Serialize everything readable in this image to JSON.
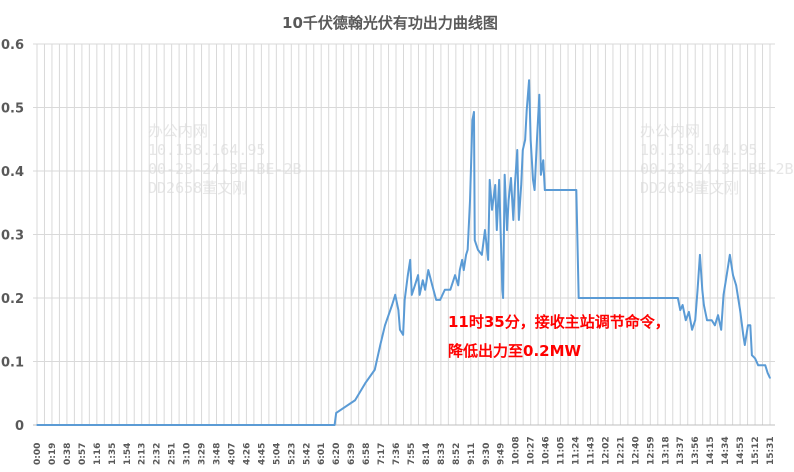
{
  "chart_data": {
    "type": "line",
    "title": "10千伏德翰光伏有功出力曲线图",
    "xlabel": "",
    "ylabel": "",
    "ylim": [
      0,
      0.6
    ],
    "yticks": [
      "0",
      "0.1",
      "0.2",
      "0.3",
      "0.4",
      "0.5",
      "0.6"
    ],
    "xticks": [
      "0:00",
      "0:19",
      "0:38",
      "0:57",
      "1:16",
      "1:35",
      "1:54",
      "2:13",
      "2:32",
      "2:51",
      "3:10",
      "3:29",
      "3:48",
      "4:07",
      "4:26",
      "4:45",
      "5:04",
      "5:23",
      "5:42",
      "6:01",
      "6:20",
      "6:39",
      "6:58",
      "7:17",
      "7:36",
      "7:55",
      "8:14",
      "8:33",
      "8:52",
      "9:11",
      "9:30",
      "9:49",
      "10:08",
      "10:27",
      "10:46",
      "11:05",
      "11:24",
      "11:43",
      "12:02",
      "12:21",
      "12:40",
      "12:59",
      "13:18",
      "13:37",
      "13:56",
      "14:15",
      "14:34",
      "14:53",
      "15:12",
      "15:31"
    ],
    "grid": "horizontal and vertical",
    "line_color": "#5b9bd5",
    "series": [
      {
        "points": [
          [
            "0:00",
            0
          ],
          [
            "6:18",
            0
          ],
          [
            "6:20",
            0.019
          ],
          [
            "6:44",
            0.039
          ],
          [
            "6:57",
            0.066
          ],
          [
            "7:09",
            0.087
          ],
          [
            "7:16",
            0.126
          ],
          [
            "7:22",
            0.157
          ],
          [
            "7:31",
            0.189
          ],
          [
            "7:35",
            0.205
          ],
          [
            "7:39",
            0.181
          ],
          [
            "7:41",
            0.15
          ],
          [
            "7:45",
            0.142
          ],
          [
            "7:47",
            0.197
          ],
          [
            "7:51",
            0.236
          ],
          [
            "7:54",
            0.26
          ],
          [
            "7:56",
            0.205
          ],
          [
            "8:00",
            0.22
          ],
          [
            "8:04",
            0.236
          ],
          [
            "8:06",
            0.205
          ],
          [
            "8:10",
            0.228
          ],
          [
            "8:13",
            0.213
          ],
          [
            "8:17",
            0.244
          ],
          [
            "8:22",
            0.22
          ],
          [
            "8:27",
            0.197
          ],
          [
            "8:32",
            0.197
          ],
          [
            "8:38",
            0.213
          ],
          [
            "8:45",
            0.213
          ],
          [
            "8:51",
            0.236
          ],
          [
            "8:55",
            0.22
          ],
          [
            "8:57",
            0.244
          ],
          [
            "9:00",
            0.26
          ],
          [
            "9:02",
            0.244
          ],
          [
            "9:05",
            0.268
          ],
          [
            "9:07",
            0.276
          ],
          [
            "9:10",
            0.354
          ],
          [
            "9:13",
            0.48
          ],
          [
            "9:15",
            0.493
          ],
          [
            "9:16",
            0.291
          ],
          [
            "9:20",
            0.276
          ],
          [
            "9:25",
            0.268
          ],
          [
            "9:29",
            0.307
          ],
          [
            "9:33",
            0.26
          ],
          [
            "9:35",
            0.386
          ],
          [
            "9:38",
            0.339
          ],
          [
            "9:42",
            0.378
          ],
          [
            "9:44",
            0.307
          ],
          [
            "9:47",
            0.386
          ],
          [
            "9:51",
            0.213
          ],
          [
            "9:52",
            0.2
          ],
          [
            "9:54",
            0.394
          ],
          [
            "9:57",
            0.307
          ],
          [
            "9:59",
            0.354
          ],
          [
            "10:02",
            0.389
          ],
          [
            "10:05",
            0.323
          ],
          [
            "10:07",
            0.378
          ],
          [
            "10:10",
            0.433
          ],
          [
            "10:12",
            0.323
          ],
          [
            "10:15",
            0.378
          ],
          [
            "10:17",
            0.433
          ],
          [
            "10:20",
            0.449
          ],
          [
            "10:22",
            0.496
          ],
          [
            "10:25",
            0.543
          ],
          [
            "10:27",
            0.449
          ],
          [
            "10:30",
            0.386
          ],
          [
            "10:32",
            0.37
          ],
          [
            "10:35",
            0.449
          ],
          [
            "10:38",
            0.52
          ],
          [
            "10:40",
            0.394
          ],
          [
            "10:43",
            0.417
          ],
          [
            "10:45",
            0.37
          ],
          [
            "10:48",
            0.37
          ],
          [
            "11:25",
            0.37
          ],
          [
            "11:28",
            0.2
          ],
          [
            "13:34",
            0.2
          ],
          [
            "13:37",
            0.181
          ],
          [
            "13:40",
            0.189
          ],
          [
            "13:44",
            0.165
          ],
          [
            "13:48",
            0.178
          ],
          [
            "13:52",
            0.15
          ],
          [
            "13:56",
            0.165
          ],
          [
            "13:59",
            0.213
          ],
          [
            "14:02",
            0.268
          ],
          [
            "14:05",
            0.213
          ],
          [
            "14:07",
            0.189
          ],
          [
            "14:11",
            0.165
          ],
          [
            "14:17",
            0.165
          ],
          [
            "14:21",
            0.157
          ],
          [
            "14:25",
            0.173
          ],
          [
            "14:29",
            0.15
          ],
          [
            "14:32",
            0.205
          ],
          [
            "14:36",
            0.236
          ],
          [
            "14:40",
            0.268
          ],
          [
            "14:44",
            0.236
          ],
          [
            "14:48",
            0.22
          ],
          [
            "14:53",
            0.181
          ],
          [
            "14:57",
            0.142
          ],
          [
            "14:59",
            0.126
          ],
          [
            "15:03",
            0.157
          ],
          [
            "15:06",
            0.157
          ],
          [
            "15:08",
            0.11
          ],
          [
            "15:12",
            0.105
          ],
          [
            "15:16",
            0.094
          ],
          [
            "15:25",
            0.094
          ],
          [
            "15:28",
            0.082
          ],
          [
            "15:31",
            0.074
          ]
        ]
      }
    ],
    "annotation": [
      "11时35分，接收主站调节命令，",
      "降低出力至0.2MW"
    ],
    "annotation_color": "#ff0000"
  },
  "watermark": {
    "left": [
      "办公内网",
      "10.158.164.95",
      "00-23-24-3F-BE-2B",
      "DD2658董文刚"
    ],
    "right": [
      "办公内网",
      "10.158.164.95",
      "00-23-24-3F-BE-2B",
      "DD2658董文刚"
    ]
  }
}
